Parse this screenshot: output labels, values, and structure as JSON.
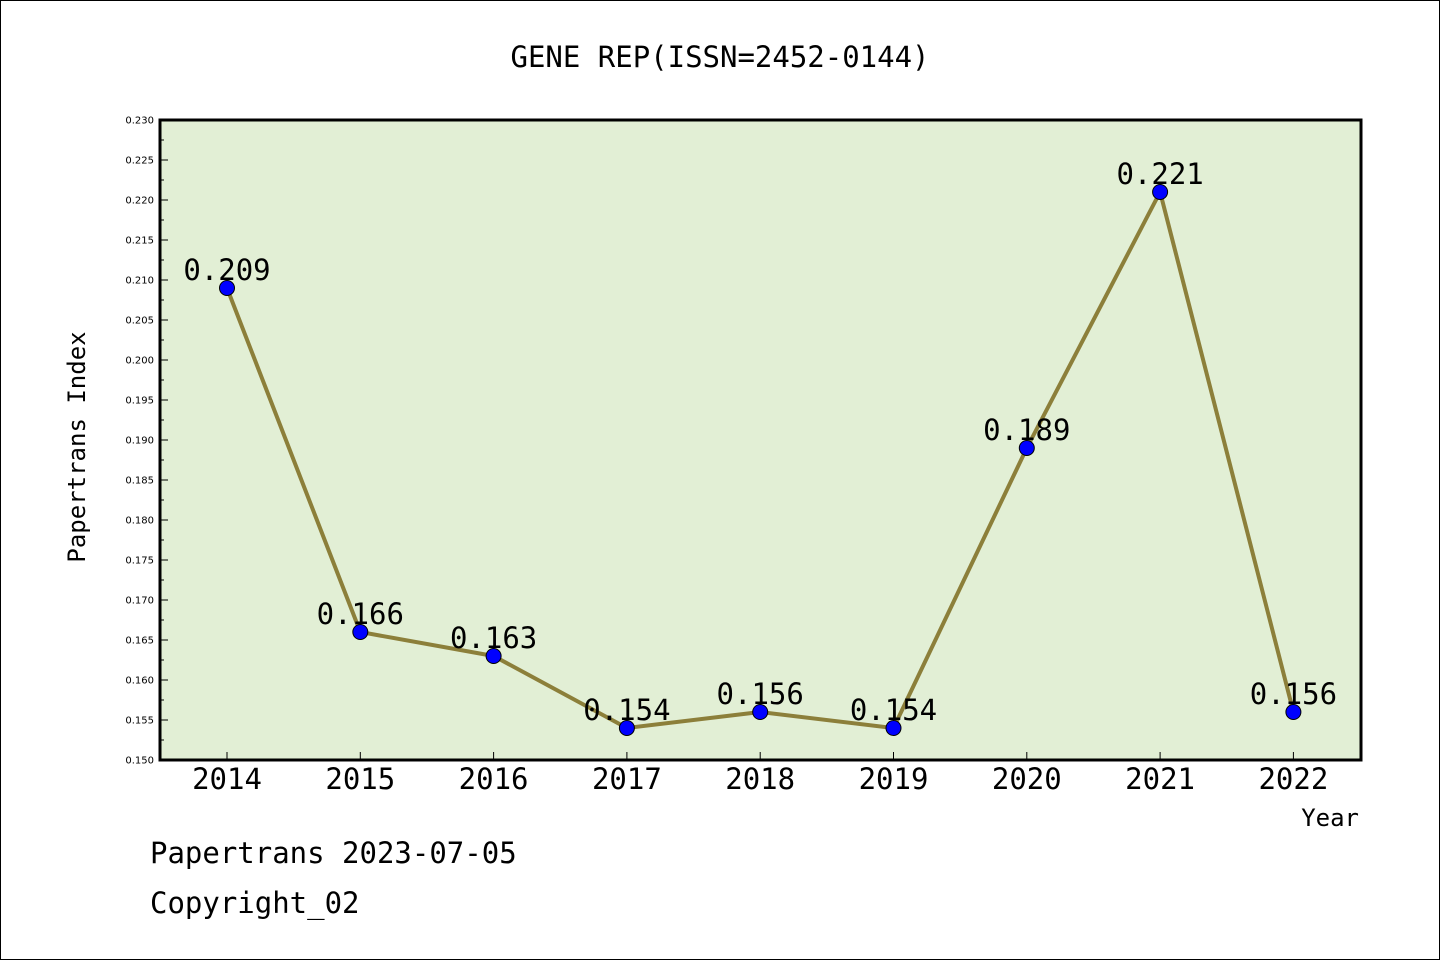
{
  "chart_data": {
    "type": "line",
    "title": "GENE REP(ISSN=2452-0144)",
    "xlabel": "Year",
    "ylabel": "Papertrans Index",
    "categories": [
      "2014",
      "2015",
      "2016",
      "2017",
      "2018",
      "2019",
      "2020",
      "2021",
      "2022"
    ],
    "series": [
      {
        "values": [
          0.209,
          0.166,
          0.163,
          0.154,
          0.156,
          0.154,
          0.189,
          0.221,
          0.156
        ]
      }
    ],
    "data_labels": [
      "0.209",
      "0.166",
      "0.163",
      "0.154",
      "0.156",
      "0.154",
      "0.189",
      "0.221",
      "0.156"
    ],
    "ylim": [
      0.15,
      0.23
    ],
    "ytick_step": 0.005,
    "yticks": [
      "0.150",
      "0.155",
      "0.160",
      "0.165",
      "0.170",
      "0.175",
      "0.180",
      "0.185",
      "0.190",
      "0.195",
      "0.200",
      "0.205",
      "0.210",
      "0.215",
      "0.220",
      "0.225",
      "0.230"
    ],
    "grid": false,
    "legend": "none",
    "colors": {
      "plot_bg": "#e2efd5",
      "line": "#8c7f3a",
      "marker": "#0000ff"
    }
  },
  "footer": {
    "line1": "Papertrans 2023-07-05",
    "line2": "Copyright_02"
  }
}
